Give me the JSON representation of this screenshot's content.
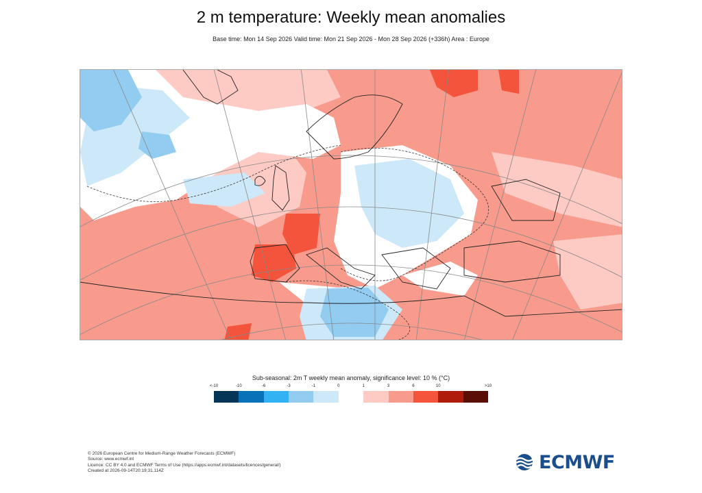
{
  "header": {
    "title": "2 m temperature: Weekly mean anomalies",
    "subtitle": "Base time: Mon 14 Sep 2026 Valid time: Mon 21 Sep 2026 - Mon 28 Sep 2026 (+336h) Area : Europe"
  },
  "map": {
    "area": "Europe",
    "colors": {
      "strong_warm": "#f4533c",
      "warm": "#f89b8c",
      "slight_warm": "#fdcac4",
      "neutral": "#ffffff",
      "slight_cool": "#cde8f8",
      "cool": "#92ccf0",
      "land_outline": "#222222",
      "graticule": "#888888"
    }
  },
  "legend": {
    "title": "Sub-seasonal: 2m T weekly mean anomaly, significance level: 10 % (°C)",
    "ticks": [
      "<-10",
      "-10",
      "-6",
      "-3",
      "-1",
      "0",
      "1",
      "3",
      "6",
      "10",
      ">10"
    ],
    "colors": [
      "#053657",
      "#0872b8",
      "#33b2f3",
      "#92ccf0",
      "#cde8f8",
      "#ffffff",
      "#fdcac4",
      "#f89b8c",
      "#f4533c",
      "#b01c0b",
      "#5b0e06"
    ]
  },
  "footer": {
    "line1": "© 2026 European Centre for Medium-Range Weather Forecasts (ECMWF)",
    "line2": "Source: www.ecmwf.int",
    "line3": "Licence: CC BY 4.0 and ECMWF Terms of Use (https://apps.ecmwf.int/datasets/licences/general/)",
    "line4": "Created at 2026-09-14T20:19:31.114Z"
  },
  "logo": {
    "text": "ECMWF",
    "icon": "ecmwf-logo-icon"
  }
}
